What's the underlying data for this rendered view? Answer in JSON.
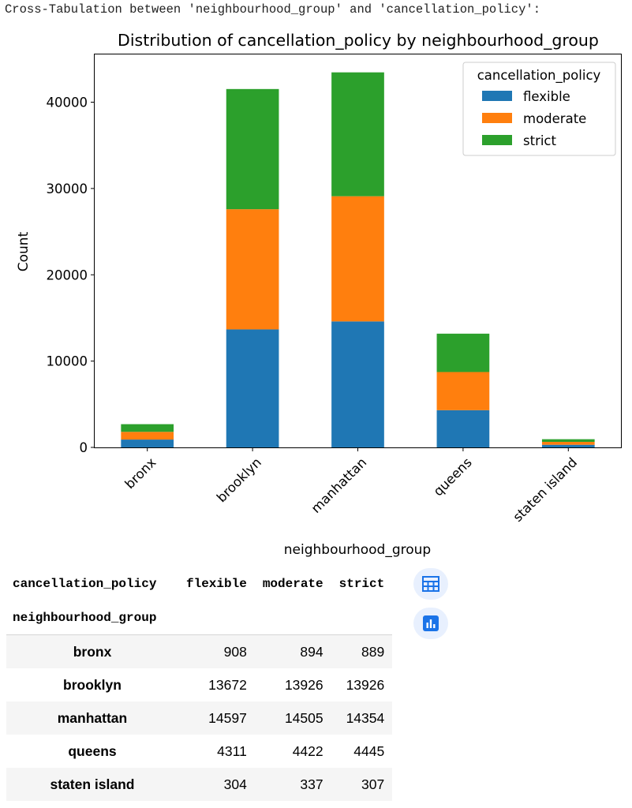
{
  "print_text": "Cross-Tabulation between 'neighbourhood_group' and 'cancellation_policy':",
  "chart_data": {
    "type": "bar",
    "stacked": true,
    "title": "Distribution of cancellation_policy by neighbourhood_group",
    "xlabel": "neighbourhood_group",
    "ylabel": "Count",
    "categories": [
      "bronx",
      "brooklyn",
      "manhattan",
      "queens",
      "staten island"
    ],
    "series": [
      {
        "name": "flexible",
        "color": "#1f77b4",
        "values": [
          908,
          13672,
          14597,
          4311,
          304
        ]
      },
      {
        "name": "moderate",
        "color": "#ff7f0e",
        "values": [
          894,
          13926,
          14505,
          4422,
          337
        ]
      },
      {
        "name": "strict",
        "color": "#2ca02c",
        "values": [
          889,
          13926,
          14354,
          4445,
          307
        ]
      }
    ],
    "ylim": [
      0,
      45000
    ],
    "yticks": [
      0,
      10000,
      20000,
      30000,
      40000
    ],
    "legend_title": "cancellation_policy",
    "legend_position": "top-right",
    "grid": false
  },
  "table": {
    "index_name": "neighbourhood_group",
    "columns_name": "cancellation_policy",
    "columns": [
      "flexible",
      "moderate",
      "strict"
    ],
    "rows": [
      {
        "index": "bronx",
        "values": [
          "908",
          "894",
          "889"
        ]
      },
      {
        "index": "brooklyn",
        "values": [
          "13672",
          "13926",
          "13926"
        ]
      },
      {
        "index": "manhattan",
        "values": [
          "14597",
          "14505",
          "14354"
        ]
      },
      {
        "index": "queens",
        "values": [
          "4311",
          "4422",
          "4445"
        ]
      },
      {
        "index": "staten island",
        "values": [
          "304",
          "337",
          "307"
        ]
      }
    ]
  },
  "buttons": {
    "table_icon": "table-icon",
    "chart_icon": "bar-chart-icon",
    "accent": "#1a73e8"
  }
}
